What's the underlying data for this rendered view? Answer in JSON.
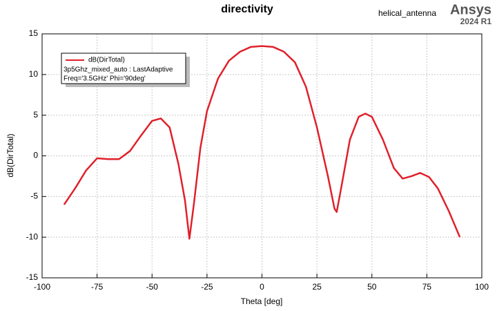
{
  "chart_data": {
    "type": "line",
    "title": "directivity",
    "subtitle": "helical_antenna",
    "brand": "Ansys",
    "version": "2024 R1",
    "x_label": "Theta [deg]",
    "y_label": "dB(DirTotal)",
    "x": [
      -90,
      -85,
      -80,
      -75,
      -70,
      -65,
      -60,
      -55,
      -50,
      -46,
      -42,
      -38,
      -35,
      -33,
      -31,
      -28,
      -25,
      -20,
      -15,
      -10,
      -5,
      0,
      5,
      10,
      15,
      20,
      25,
      30,
      33,
      34,
      36,
      40,
      44,
      47,
      50,
      55,
      60,
      64,
      68,
      72,
      76,
      80,
      85,
      90
    ],
    "series": [
      {
        "name": "dB(DirTotal)",
        "color": "#e0202a",
        "values": [
          -6,
          -4,
          -1.8,
          -0.3,
          -0.4,
          -0.4,
          0.6,
          2.5,
          4.3,
          4.6,
          3.5,
          -1,
          -5.5,
          -10.2,
          -6,
          1,
          5.5,
          9.5,
          11.7,
          12.8,
          13.4,
          13.5,
          13.4,
          12.8,
          11.5,
          8.5,
          3.5,
          -2.5,
          -6.5,
          -6.9,
          -4,
          2,
          4.8,
          5.2,
          4.8,
          2,
          -1.5,
          -2.8,
          -2.5,
          -2.1,
          -2.6,
          -4,
          -6.8,
          -10
        ]
      }
    ],
    "legend_lines": [
      "3p5Ghz_mixed_auto : LastAdaptive",
      "Freq='3.5GHz' Phi='90deg'"
    ],
    "xlim": [
      -100,
      100
    ],
    "xticks": [
      -100,
      -75,
      -50,
      -25,
      0,
      25,
      50,
      75,
      100
    ],
    "ylim": [
      -15,
      15
    ],
    "yticks": [
      -15,
      -10,
      -5,
      0,
      5,
      10,
      15
    ],
    "grid": true
  }
}
